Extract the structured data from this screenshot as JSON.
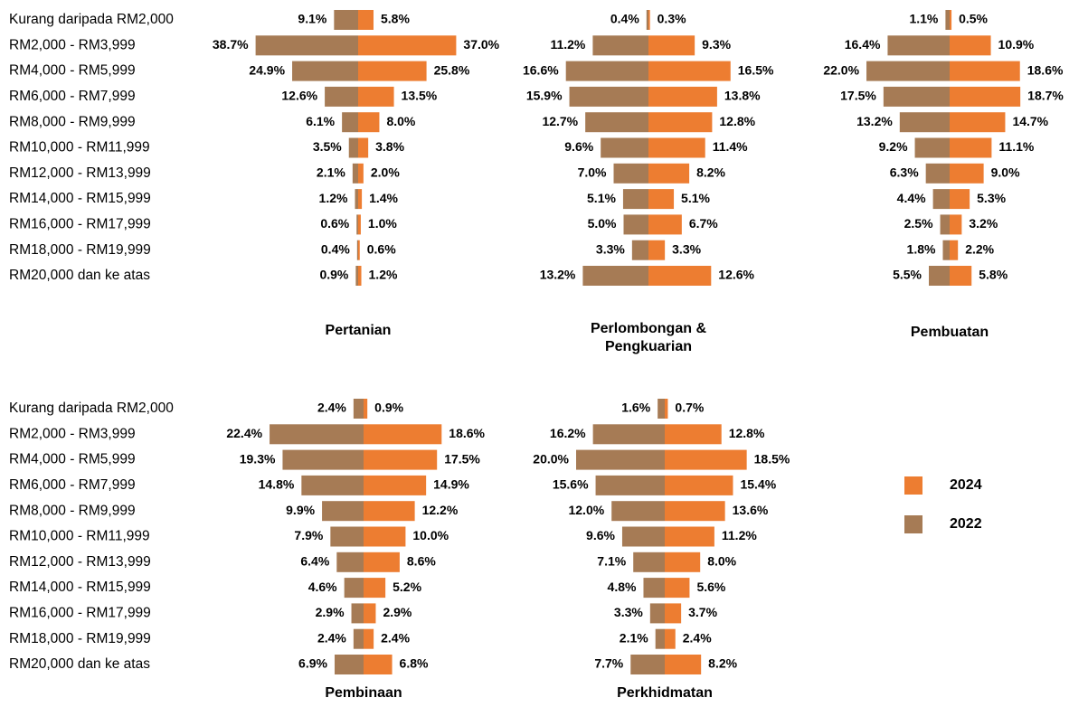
{
  "chart_data": [
    {
      "type": "butterfly",
      "title": "Pertanian",
      "categories": [
        "Kurang daripada RM2,000",
        "RM2,000 - RM3,999",
        "RM4,000 - RM5,999",
        "RM6,000 - RM7,999",
        "RM8,000 - RM9,999",
        "RM10,000 - RM11,999",
        "RM12,000 - RM13,999",
        "RM14,000 - RM15,999",
        "RM16,000 - RM17,999",
        "RM18,000 - RM19,999",
        "RM20,000 dan ke atas"
      ],
      "series": [
        {
          "name": "2022",
          "color": "#a67b55",
          "values": [
            9.1,
            38.7,
            24.9,
            12.6,
            6.1,
            3.5,
            2.1,
            1.2,
            0.6,
            0.4,
            0.9
          ],
          "value_labels": [
            "9.1%",
            "38.7%",
            "24.9%",
            "12.6%",
            "6.1%",
            "3.5%",
            "2.1%",
            "1.2%",
            "0.6%",
            "0.4%",
            "0.9%"
          ]
        },
        {
          "name": "2024",
          "color": "#ed7d31",
          "values": [
            5.8,
            37.0,
            25.8,
            13.5,
            8.0,
            3.8,
            2.0,
            1.4,
            1.0,
            0.6,
            1.2
          ],
          "value_labels": [
            "5.8%",
            "37.0%",
            "25.8%",
            "13.5%",
            "8.0%",
            "3.8%",
            "2.0%",
            "1.4%",
            "1.0%",
            "0.6%",
            "1.2%"
          ]
        }
      ]
    },
    {
      "type": "butterfly",
      "title": "Perlombongan & Pengkuarian",
      "series": [
        {
          "name": "2022",
          "color": "#a67b55",
          "values": [
            0.4,
            11.2,
            16.6,
            15.9,
            12.7,
            9.6,
            7.0,
            5.1,
            5.0,
            3.3,
            13.2
          ],
          "value_labels": [
            "0.4%",
            "11.2%",
            "16.6%",
            "15.9%",
            "12.7%",
            "9.6%",
            "7.0%",
            "5.1%",
            "5.0%",
            "3.3%",
            "13.2%"
          ]
        },
        {
          "name": "2024",
          "color": "#ed7d31",
          "values": [
            0.3,
            9.3,
            16.5,
            13.8,
            12.8,
            11.4,
            8.2,
            5.1,
            6.7,
            3.3,
            12.6
          ],
          "value_labels": [
            "0.3%",
            "9.3%",
            "16.5%",
            "13.8%",
            "12.8%",
            "11.4%",
            "8.2%",
            "5.1%",
            "6.7%",
            "3.3%",
            "12.6%"
          ]
        }
      ]
    },
    {
      "type": "butterfly",
      "title": "Pembuatan",
      "series": [
        {
          "name": "2022",
          "color": "#a67b55",
          "values": [
            1.1,
            16.4,
            22.0,
            17.5,
            13.2,
            9.2,
            6.3,
            4.4,
            2.5,
            1.8,
            5.5
          ],
          "value_labels": [
            "1.1%",
            "16.4%",
            "22.0%",
            "17.5%",
            "13.2%",
            "9.2%",
            "6.3%",
            "4.4%",
            "2.5%",
            "1.8%",
            "5.5%"
          ]
        },
        {
          "name": "2024",
          "color": "#ed7d31",
          "values": [
            0.5,
            10.9,
            18.6,
            18.7,
            14.7,
            11.1,
            9.0,
            5.3,
            3.2,
            2.2,
            5.8
          ],
          "value_labels": [
            "0.5%",
            "10.9%",
            "18.6%",
            "18.7%",
            "14.7%",
            "11.1%",
            "9.0%",
            "5.3%",
            "3.2%",
            "2.2%",
            "5.8%"
          ]
        }
      ]
    },
    {
      "type": "butterfly",
      "title": "Pembinaan",
      "categories": [
        "Kurang daripada RM2,000",
        "RM2,000 - RM3,999",
        "RM4,000 - RM5,999",
        "RM6,000 - RM7,999",
        "RM8,000 - RM9,999",
        "RM10,000 - RM11,999",
        "RM12,000 - RM13,999",
        "RM14,000 - RM15,999",
        "RM16,000 - RM17,999",
        "RM18,000 - RM19,999",
        "RM20,000 dan ke atas"
      ],
      "series": [
        {
          "name": "2022",
          "color": "#a67b55",
          "values": [
            2.4,
            22.4,
            19.3,
            14.8,
            9.9,
            7.9,
            6.4,
            4.6,
            2.9,
            2.4,
            6.9
          ],
          "value_labels": [
            "2.4%",
            "22.4%",
            "19.3%",
            "14.8%",
            "9.9%",
            "7.9%",
            "6.4%",
            "4.6%",
            "2.9%",
            "2.4%",
            "6.9%"
          ]
        },
        {
          "name": "2024",
          "color": "#ed7d31",
          "values": [
            0.9,
            18.6,
            17.5,
            14.9,
            12.2,
            10.0,
            8.6,
            5.2,
            2.9,
            2.4,
            6.8
          ],
          "value_labels": [
            "0.9%",
            "18.6%",
            "17.5%",
            "14.9%",
            "12.2%",
            "10.0%",
            "8.6%",
            "5.2%",
            "2.9%",
            "2.4%",
            "6.8%"
          ]
        }
      ]
    },
    {
      "type": "butterfly",
      "title": "Perkhidmatan",
      "series": [
        {
          "name": "2022",
          "color": "#a67b55",
          "values": [
            1.6,
            16.2,
            20.0,
            15.6,
            12.0,
            9.6,
            7.1,
            4.8,
            3.3,
            2.1,
            7.7
          ],
          "value_labels": [
            "1.6%",
            "16.2%",
            "20.0%",
            "15.6%",
            "12.0%",
            "9.6%",
            "7.1%",
            "4.8%",
            "3.3%",
            "2.1%",
            "7.7%"
          ]
        },
        {
          "name": "2024",
          "color": "#ed7d31",
          "values": [
            0.7,
            12.8,
            18.5,
            15.4,
            13.6,
            11.2,
            8.0,
            5.6,
            3.7,
            2.4,
            8.2
          ],
          "value_labels": [
            "0.7%",
            "12.8%",
            "18.5%",
            "15.4%",
            "13.6%",
            "11.2%",
            "8.0%",
            "5.6%",
            "3.7%",
            "2.4%",
            "8.2%"
          ]
        }
      ]
    }
  ]
}
